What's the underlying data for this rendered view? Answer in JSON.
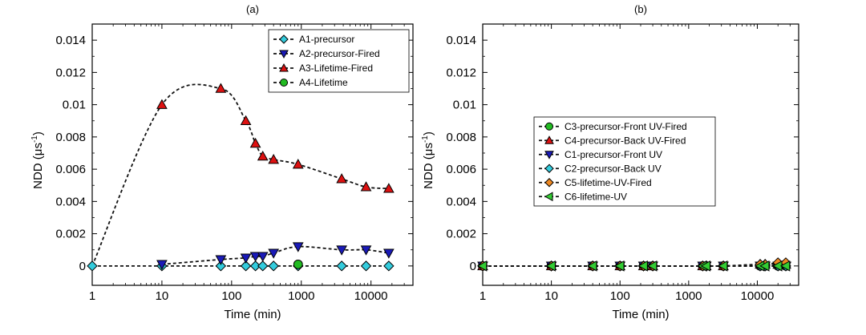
{
  "chart_data": [
    {
      "type": "scatter",
      "title": "(a)",
      "xlabel": "Time (min)",
      "ylabel_main": "NDD (μs",
      "ylabel_sup": "-1",
      "ylabel_close": ")",
      "xscale": "log",
      "xlim": [
        1,
        40000
      ],
      "ylim": [
        -0.0012,
        0.015
      ],
      "x_ticks": [
        1,
        10,
        100,
        1000,
        10000
      ],
      "x_tick_labels": [
        "1",
        "10",
        "100",
        "1000",
        "10000"
      ],
      "y_ticks": [
        0,
        0.002,
        0.004,
        0.006,
        0.008,
        0.01,
        0.012,
        0.014
      ],
      "y_tick_labels": [
        "0",
        "0.002",
        "0.004",
        "0.006",
        "0.008",
        "0.01",
        "0.012",
        "0.014"
      ],
      "legend_position": "top-right",
      "grid": false,
      "series": [
        {
          "name": "A1-precursor",
          "marker": "diamond",
          "color": "#33ccdd",
          "x": [
            1,
            10,
            70,
            160,
            220,
            280,
            400,
            900,
            3800,
            8500,
            18000
          ],
          "y": [
            0,
            0,
            0,
            0,
            0,
            0,
            0,
            0,
            0,
            0,
            0
          ]
        },
        {
          "name": "A2-precursor-Fired",
          "marker": "triangle-down",
          "color": "#1a1ab8",
          "x": [
            10,
            70,
            160,
            220,
            280,
            400,
            900,
            3800,
            8500,
            18000
          ],
          "y": [
            0.0001,
            0.0004,
            0.0005,
            0.0006,
            0.0006,
            0.0008,
            0.0012,
            0.001,
            0.001,
            0.0008
          ]
        },
        {
          "name": "A3-Lifetime-Fired",
          "marker": "triangle-up",
          "color": "#dd1111",
          "x": [
            10,
            70,
            160,
            220,
            280,
            400,
            900,
            3800,
            8500,
            18000
          ],
          "y": [
            0.01,
            0.011,
            0.009,
            0.0076,
            0.0068,
            0.0066,
            0.0063,
            0.0054,
            0.0049,
            0.0048
          ]
        },
        {
          "name": "A4-Lifetime",
          "marker": "circle",
          "color": "#22bb22",
          "x": [
            900
          ],
          "y": [
            0.0001
          ]
        }
      ]
    },
    {
      "type": "scatter",
      "title": "(b)",
      "xlabel": "Time (min)",
      "ylabel_main": "NDD (μs",
      "ylabel_sup": "-1",
      "ylabel_close": ")",
      "xscale": "log",
      "xlim": [
        1,
        40000
      ],
      "ylim": [
        -0.0012,
        0.015
      ],
      "x_ticks": [
        1,
        10,
        100,
        1000,
        10000
      ],
      "x_tick_labels": [
        "1",
        "10",
        "100",
        "1000",
        "10000"
      ],
      "y_ticks": [
        0,
        0.002,
        0.004,
        0.006,
        0.008,
        0.01,
        0.012,
        0.014
      ],
      "y_tick_labels": [
        "0",
        "0.002",
        "0.004",
        "0.006",
        "0.008",
        "0.01",
        "0.012",
        "0.014"
      ],
      "legend_position": "center",
      "grid": false,
      "series": [
        {
          "name": "C3-precursor-Front UV-Fired",
          "marker": "circle",
          "color": "#22bb22",
          "x": [
            1,
            10,
            40,
            100,
            220,
            300,
            1600,
            1800,
            3200,
            11000,
            13000,
            20000,
            26000
          ],
          "y": [
            0,
            0,
            0,
            0,
            0,
            0,
            0,
            0,
            0,
            0,
            0,
            0,
            0
          ]
        },
        {
          "name": "C4-precursor-Back UV-Fired",
          "marker": "triangle-up",
          "color": "#dd1111",
          "x": [
            1,
            10,
            40,
            100,
            220,
            300,
            1600,
            1800,
            3200,
            11000,
            13000,
            20000,
            26000
          ],
          "y": [
            0,
            0,
            0,
            0,
            0,
            0,
            0,
            0,
            0,
            0.0001,
            0.0001,
            0.0001,
            0.0001
          ]
        },
        {
          "name": "C1-precursor-Front UV",
          "marker": "triangle-down",
          "color": "#1a1ab8",
          "x": [
            1,
            10,
            40,
            100,
            220,
            300,
            1600,
            1800,
            3200,
            11000,
            13000,
            20000,
            26000
          ],
          "y": [
            0,
            0,
            0,
            0,
            0,
            0,
            0,
            0,
            0,
            0,
            0,
            0,
            0
          ]
        },
        {
          "name": "C2-precursor-Back UV",
          "marker": "diamond",
          "color": "#33ccdd",
          "x": [
            1,
            10,
            40,
            100,
            220,
            300,
            1600,
            1800,
            3200,
            11000,
            13000,
            20000,
            26000
          ],
          "y": [
            0,
            0,
            0,
            0,
            0,
            0,
            0,
            0,
            0,
            0,
            0,
            0,
            0
          ]
        },
        {
          "name": "C5-lifetime-UV-Fired",
          "marker": "diamond",
          "color": "#ee8822",
          "x": [
            1,
            10,
            40,
            100,
            220,
            300,
            1600,
            1800,
            3200,
            11000,
            13000,
            20000,
            26000
          ],
          "y": [
            0,
            0,
            0,
            0,
            0,
            0,
            0,
            0,
            0,
            0.0001,
            0.0001,
            0.0002,
            0.0002
          ]
        },
        {
          "name": "C6-lifetime-UV",
          "marker": "triangle-left",
          "color": "#33cc33",
          "x": [
            1,
            10,
            40,
            100,
            220,
            300,
            1600,
            1800,
            3200,
            11000,
            13000,
            20000,
            26000
          ],
          "y": [
            0,
            0,
            0,
            0,
            0,
            0,
            0,
            0,
            0,
            0,
            0,
            0,
            0
          ]
        }
      ]
    }
  ]
}
